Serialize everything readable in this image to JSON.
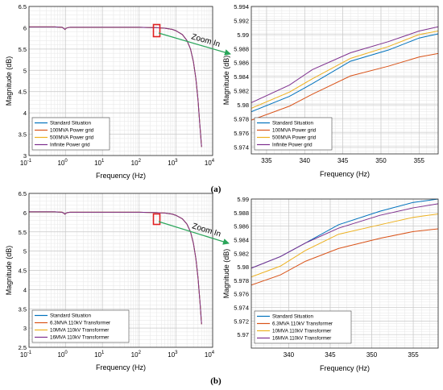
{
  "chart_data": [
    {
      "id": "a_main",
      "type": "line",
      "xscale": "log",
      "xlim": [
        0.1,
        10000
      ],
      "ylim": [
        3,
        6.5
      ],
      "xticks": [
        0.1,
        1,
        10,
        100,
        1000,
        10000
      ],
      "xtick_labels": [
        [
          "10",
          "-1"
        ],
        [
          "10",
          "0"
        ],
        [
          "10",
          "1"
        ],
        [
          "10",
          "2"
        ],
        [
          "10",
          "3"
        ],
        [
          "10",
          "4"
        ]
      ],
      "yticks": [
        3,
        3.5,
        4,
        4.5,
        5,
        5.5,
        6,
        6.5
      ],
      "ytick_labels": [
        "3",
        "3.5",
        "4",
        "4.5",
        "5",
        "5.5",
        "6",
        "6.5"
      ],
      "xlabel": "Frequency (Hz)",
      "ylabel": "Magnitude (dB)",
      "grid": true,
      "legend_position": "bottom-left",
      "series": [
        {
          "name": "Standard Situation",
          "color": "#0072BD",
          "x": [
            0.1,
            0.5,
            0.8,
            0.9,
            0.95,
            1.0,
            1.1,
            1.3,
            2,
            10,
            100,
            300,
            500,
            800,
            1000,
            1500,
            2000,
            2500,
            3000,
            3500,
            4000,
            4500,
            5000
          ],
          "y": [
            6.02,
            6.02,
            6.01,
            5.98,
            5.96,
            5.98,
            6.0,
            6.01,
            6.01,
            6.01,
            6.01,
            6.0,
            5.99,
            5.96,
            5.93,
            5.84,
            5.7,
            5.5,
            5.2,
            4.8,
            4.3,
            3.7,
            3.2
          ]
        },
        {
          "name": "100MVA Power grid",
          "color": "#D95319",
          "x": [
            0.1,
            0.5,
            0.8,
            0.9,
            0.95,
            1.0,
            1.1,
            1.3,
            2,
            10,
            100,
            300,
            500,
            800,
            1000,
            1500,
            2000,
            2500,
            3000,
            3500,
            4000,
            4500,
            5000
          ],
          "y": [
            6.02,
            6.02,
            6.01,
            5.98,
            5.96,
            5.98,
            6.0,
            6.01,
            6.01,
            6.01,
            6.01,
            6.0,
            5.99,
            5.96,
            5.93,
            5.84,
            5.7,
            5.5,
            5.2,
            4.8,
            4.3,
            3.7,
            3.2
          ]
        },
        {
          "name": "500MVA Power grid",
          "color": "#EDB120",
          "x": [
            0.1,
            0.5,
            0.8,
            0.9,
            0.95,
            1.0,
            1.1,
            1.3,
            2,
            10,
            100,
            300,
            500,
            800,
            1000,
            1500,
            2000,
            2500,
            3000,
            3500,
            4000,
            4500,
            5000
          ],
          "y": [
            6.02,
            6.02,
            6.01,
            5.98,
            5.96,
            5.98,
            6.0,
            6.01,
            6.01,
            6.01,
            6.01,
            6.0,
            5.99,
            5.96,
            5.93,
            5.84,
            5.7,
            5.5,
            5.2,
            4.8,
            4.3,
            3.7,
            3.2
          ]
        },
        {
          "name": "Infinite Power grid",
          "color": "#7E2F8E",
          "x": [
            0.1,
            0.5,
            0.8,
            0.9,
            0.95,
            1.0,
            1.1,
            1.3,
            2,
            10,
            100,
            300,
            500,
            800,
            1000,
            1500,
            2000,
            2500,
            3000,
            3500,
            4000,
            4500,
            5000
          ],
          "y": [
            6.02,
            6.02,
            6.01,
            5.98,
            5.96,
            5.98,
            6.0,
            6.01,
            6.01,
            6.01,
            6.01,
            6.0,
            5.99,
            5.96,
            5.93,
            5.84,
            5.7,
            5.5,
            5.2,
            4.8,
            4.3,
            3.7,
            3.2
          ]
        }
      ],
      "legend": [
        "Standard Situation",
        "100MVA Power grid",
        "500MVA Power grid",
        "Infinite Power grid"
      ]
    },
    {
      "id": "a_zoom",
      "type": "line",
      "xscale": "linear",
      "xlim": [
        333,
        357.5
      ],
      "ylim": [
        5.973,
        5.994
      ],
      "xticks": [
        335,
        340,
        345,
        350,
        355
      ],
      "xtick_labels": [
        "335",
        "340",
        "345",
        "350",
        "355"
      ],
      "yticks": [
        5.974,
        5.976,
        5.978,
        5.98,
        5.982,
        5.984,
        5.986,
        5.988,
        5.99,
        5.992,
        5.994
      ],
      "ytick_labels": [
        "5.974",
        "5.976",
        "5.978",
        "5.98",
        "5.982",
        "5.984",
        "5.986",
        "5.988",
        "5.99",
        "5.992",
        "5.994"
      ],
      "xlabel": "Frequency (Hz)",
      "ylabel": "Magnitude (dB)",
      "grid": true,
      "legend_position": "bottom-left",
      "series": [
        {
          "name": "Standard Situation",
          "color": "#0072BD",
          "x": [
            333,
            338,
            341,
            346,
            351,
            355,
            357.5
          ],
          "y": [
            5.979,
            5.9812,
            5.983,
            5.9862,
            5.9878,
            5.9895,
            5.9901
          ]
        },
        {
          "name": "100MVA Power grid",
          "color": "#D95319",
          "x": [
            333,
            338,
            341,
            346,
            351,
            355,
            357.5
          ],
          "y": [
            5.9778,
            5.9798,
            5.9815,
            5.9841,
            5.9855,
            5.9868,
            5.9873
          ]
        },
        {
          "name": "500MVA Power grid",
          "color": "#EDB120",
          "x": [
            333,
            338,
            341,
            346,
            351,
            355,
            357.5
          ],
          "y": [
            5.9795,
            5.9818,
            5.9837,
            5.9866,
            5.9883,
            5.99,
            5.9905
          ]
        },
        {
          "name": "Infinite Power grid",
          "color": "#7E2F8E",
          "x": [
            333,
            338,
            341,
            346,
            351,
            355,
            357.5
          ],
          "y": [
            5.9803,
            5.9828,
            5.985,
            5.9874,
            5.989,
            5.9905,
            5.9911
          ]
        }
      ],
      "legend": [
        "Standard Situation",
        "100MVA Power grid",
        "500MVA Power grid",
        "Infinite Power grid"
      ]
    },
    {
      "id": "b_main",
      "type": "line",
      "xscale": "log",
      "xlim": [
        0.1,
        10000
      ],
      "ylim": [
        2.5,
        6.5
      ],
      "xticks": [
        0.1,
        1,
        10,
        100,
        1000,
        10000
      ],
      "xtick_labels": [
        [
          "10",
          "-1"
        ],
        [
          "10",
          "0"
        ],
        [
          "10",
          "1"
        ],
        [
          "10",
          "2"
        ],
        [
          "10",
          "3"
        ],
        [
          "10",
          "4"
        ]
      ],
      "yticks": [
        2.5,
        3,
        3.5,
        4,
        4.5,
        5,
        5.5,
        6,
        6.5
      ],
      "ytick_labels": [
        "2.5",
        "3",
        "3.5",
        "4",
        "4.5",
        "5",
        "5.5",
        "6",
        "6.5"
      ],
      "xlabel": "Frequency (Hz)",
      "ylabel": "Magnitude (dB)",
      "grid": true,
      "legend_position": "bottom-left",
      "series": [
        {
          "name": "Standard Situation",
          "color": "#0072BD",
          "x": [
            0.1,
            0.5,
            0.8,
            0.9,
            0.95,
            1.0,
            1.1,
            1.3,
            2,
            10,
            100,
            300,
            500,
            800,
            1000,
            1500,
            2000,
            2500,
            3000,
            3500,
            4000,
            4500,
            5000
          ],
          "y": [
            6.02,
            6.02,
            6.01,
            5.98,
            5.96,
            5.98,
            6.0,
            6.01,
            6.01,
            6.01,
            6.01,
            6.0,
            5.99,
            5.96,
            5.93,
            5.84,
            5.7,
            5.5,
            5.2,
            4.8,
            4.3,
            3.7,
            3.1
          ]
        },
        {
          "name": "6.3MVA 110kV Transformer",
          "color": "#D95319",
          "x": [
            0.1,
            0.5,
            0.8,
            0.9,
            0.95,
            1.0,
            1.1,
            1.3,
            2,
            10,
            100,
            300,
            500,
            800,
            1000,
            1500,
            2000,
            2500,
            3000,
            3500,
            4000,
            4500,
            5000
          ],
          "y": [
            6.02,
            6.02,
            6.01,
            5.98,
            5.96,
            5.98,
            6.0,
            6.01,
            6.01,
            6.01,
            6.01,
            6.0,
            5.99,
            5.96,
            5.93,
            5.84,
            5.7,
            5.5,
            5.2,
            4.8,
            4.3,
            3.7,
            3.1
          ]
        },
        {
          "name": "10MVA 110kV Transformer",
          "color": "#EDB120",
          "x": [
            0.1,
            0.5,
            0.8,
            0.9,
            0.95,
            1.0,
            1.1,
            1.3,
            2,
            10,
            100,
            300,
            500,
            800,
            1000,
            1500,
            2000,
            2500,
            3000,
            3500,
            4000,
            4500,
            5000
          ],
          "y": [
            6.02,
            6.02,
            6.01,
            5.98,
            5.96,
            5.98,
            6.0,
            6.01,
            6.01,
            6.01,
            6.01,
            6.0,
            5.99,
            5.96,
            5.93,
            5.84,
            5.7,
            5.5,
            5.2,
            4.8,
            4.3,
            3.7,
            3.1
          ]
        },
        {
          "name": "16MVA 110kV Transformer",
          "color": "#7E2F8E",
          "x": [
            0.1,
            0.5,
            0.8,
            0.9,
            0.95,
            1.0,
            1.1,
            1.3,
            2,
            10,
            100,
            300,
            500,
            800,
            1000,
            1500,
            2000,
            2500,
            3000,
            3500,
            4000,
            4500,
            5000
          ],
          "y": [
            6.02,
            6.02,
            6.01,
            5.98,
            5.96,
            5.98,
            6.0,
            6.01,
            6.01,
            6.01,
            6.01,
            6.0,
            5.99,
            5.96,
            5.93,
            5.84,
            5.7,
            5.5,
            5.2,
            4.8,
            4.3,
            3.7,
            3.1
          ]
        }
      ],
      "legend": [
        "Standard Situation",
        "6.3MVA 110kV Transformer",
        "10MVA 110kV Transformer",
        "16MVA 110kV Transformer"
      ]
    },
    {
      "id": "b_zoom",
      "type": "line",
      "xscale": "linear",
      "xlim": [
        335.5,
        358
      ],
      "ylim": [
        5.968,
        5.99
      ],
      "xticks": [
        340,
        345,
        350,
        355
      ],
      "xtick_labels": [
        "340",
        "345",
        "350",
        "355"
      ],
      "yticks": [
        5.97,
        5.972,
        5.974,
        5.976,
        5.978,
        5.98,
        5.982,
        5.984,
        5.986,
        5.988,
        5.99
      ],
      "ytick_labels": [
        "5.97",
        "5.972",
        "5.974",
        "5.976",
        "5.978",
        "5.98",
        "5.982",
        "5.984",
        "5.986",
        "5.988",
        "5.99"
      ],
      "xlabel": "Frequency (Hz)",
      "ylabel": "Magnitude (dB)",
      "grid": true,
      "legend_position": "bottom-left",
      "series": [
        {
          "name": "Standard Situation",
          "color": "#0072BD",
          "x": [
            335.5,
            339,
            342,
            346,
            351,
            355,
            358
          ],
          "y": [
            5.9798,
            5.9815,
            5.9835,
            5.9862,
            5.9882,
            5.9895,
            5.99
          ]
        },
        {
          "name": "6.3MVA 110kV Transformer",
          "color": "#D95319",
          "x": [
            335.5,
            339,
            342,
            346,
            351,
            355,
            358
          ],
          "y": [
            5.9773,
            5.9788,
            5.9808,
            5.9827,
            5.9842,
            5.9852,
            5.9856
          ]
        },
        {
          "name": "10MVA 110kV Transformer",
          "color": "#EDB120",
          "x": [
            335.5,
            339,
            342,
            346,
            351,
            355,
            358
          ],
          "y": [
            5.9785,
            5.9801,
            5.9824,
            5.9848,
            5.9862,
            5.9873,
            5.9878
          ]
        },
        {
          "name": "16MVA 110kV Transformer",
          "color": "#7E2F8E",
          "x": [
            335.5,
            339,
            342,
            346,
            351,
            355,
            358
          ],
          "y": [
            5.9798,
            5.9815,
            5.9835,
            5.9857,
            5.9876,
            5.9887,
            5.9893
          ]
        }
      ],
      "legend": [
        "Standard Situation",
        "6.3MVA 110kV Transformer",
        "10MVA 110kV Transformer",
        "16MVA 110kV Transformer"
      ]
    }
  ],
  "annotations": {
    "zoom_in_label": "Zoom In",
    "caption_a": "(a)",
    "caption_b": "(b)"
  }
}
